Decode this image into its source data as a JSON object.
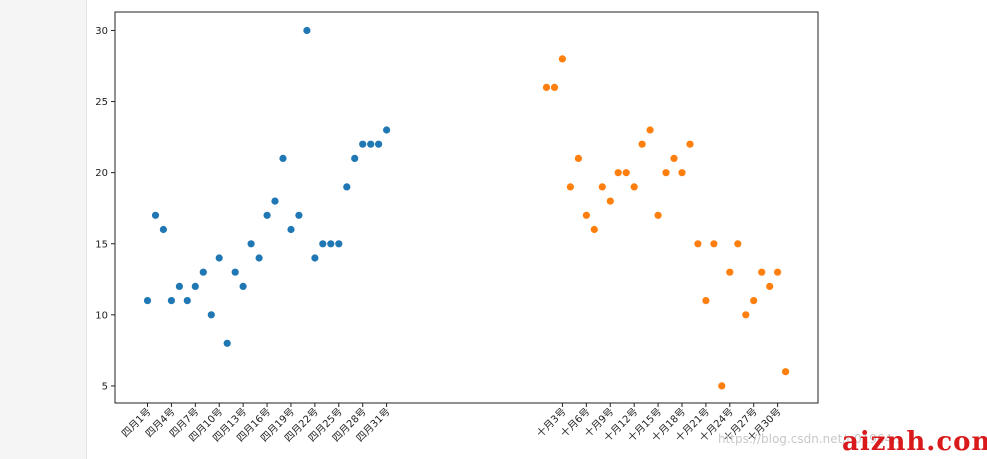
{
  "watermark": {
    "text": "https://blog.csdn.net/u01964...",
    "logo": "aiznh.com"
  },
  "chart_data": {
    "type": "scatter",
    "ylim": [
      3.8,
      31.3
    ],
    "yticks": [
      5,
      10,
      15,
      20,
      25,
      30
    ],
    "grid": false,
    "colors": [
      "#1f77b4",
      "#ff7f0e"
    ],
    "xticks_april": [
      "四月1号",
      "四月4号",
      "四月7号",
      "四月10号",
      "四月13号",
      "四月16号",
      "四月19号",
      "四月22号",
      "四月25号",
      "四月28号",
      "四月31号"
    ],
    "xticks_october": [
      "十月3号",
      "十月6号",
      "十月9号",
      "十月12号",
      "十月15号",
      "十月18号",
      "十月21号",
      "十月24号",
      "十月27号",
      "十月30号"
    ],
    "series": [
      {
        "x": [
          "四月1号",
          "四月2号",
          "四月3号",
          "四月4号",
          "四月5号",
          "四月6号",
          "四月7号",
          "四月8号",
          "四月9号",
          "四月10号",
          "四月11号",
          "四月12号",
          "四月13号",
          "四月14号",
          "四月15号",
          "四月16号",
          "四月17号",
          "四月18号",
          "四月19号",
          "四月20号",
          "四月21号",
          "四月22号",
          "四月23号",
          "四月24号",
          "四月25号",
          "四月26号",
          "四月27号",
          "四月28号",
          "四月29号",
          "四月30号",
          "四月31号"
        ],
        "values": [
          11,
          17,
          16,
          11,
          12,
          11,
          12,
          13,
          10,
          14,
          8,
          13,
          12,
          15,
          14,
          17,
          18,
          21,
          16,
          17,
          30,
          14,
          15,
          15,
          15,
          19,
          21,
          22,
          22,
          22,
          23
        ]
      },
      {
        "x": [
          "十月1号",
          "十月2号",
          "十月3号",
          "十月4号",
          "十月5号",
          "十月6号",
          "十月7号",
          "十月8号",
          "十月9号",
          "十月10号",
          "十月11号",
          "十月12号",
          "十月13号",
          "十月14号",
          "十月15号",
          "十月16号",
          "十月17号",
          "十月18号",
          "十月19号",
          "十月20号",
          "十月21号",
          "十月22号",
          "十月23号",
          "十月24号",
          "十月25号",
          "十月26号",
          "十月27号",
          "十月28号",
          "十月29号",
          "十月30号",
          "十月31号"
        ],
        "values": [
          26,
          26,
          28,
          19,
          21,
          17,
          16,
          19,
          18,
          20,
          20,
          19,
          22,
          23,
          17,
          20,
          21,
          20,
          22,
          15,
          11,
          15,
          5,
          13,
          15,
          10,
          11,
          13,
          12,
          13,
          6
        ]
      }
    ]
  }
}
